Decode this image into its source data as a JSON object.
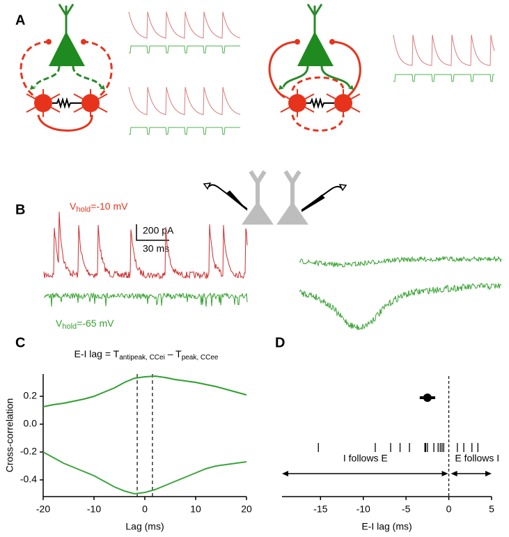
{
  "panels": {
    "a": "A",
    "b": "B",
    "c": "C",
    "d": "D"
  },
  "panel_b": {
    "v_hold_red": {
      "prefix": "V",
      "sub": "hold",
      "suffix": "=-10 mV"
    },
    "v_hold_green": {
      "prefix": "V",
      "sub": "hold",
      "suffix": "=-65 mV"
    },
    "scale_current": "200 pA",
    "scale_time": "30 ms"
  },
  "chart_data": [
    {
      "type": "line",
      "equation": {
        "lhs": "E-I lag = T",
        "sub1": "antipeak, CCei",
        "mid": " – T",
        "sub2": "peak, CCee"
      },
      "x_label": "Lag (ms)",
      "y_label": "Cross-correlation",
      "x": [
        -20,
        -18,
        -16,
        -14,
        -12,
        -10,
        -8,
        -6,
        -4,
        -2,
        0,
        2,
        4,
        6,
        8,
        10,
        12,
        14,
        16,
        18,
        20
      ],
      "series": [
        {
          "color": "#2ca02c",
          "values": [
            0.125,
            0.14,
            0.15,
            0.165,
            0.18,
            0.2,
            0.23,
            0.26,
            0.3,
            0.33,
            0.34,
            0.345,
            0.335,
            0.32,
            0.31,
            0.3,
            0.285,
            0.27,
            0.25,
            0.23,
            0.21
          ]
        },
        {
          "color": "#3aa53a",
          "values": [
            -0.2,
            -0.24,
            -0.28,
            -0.31,
            -0.34,
            -0.37,
            -0.41,
            -0.45,
            -0.48,
            -0.5,
            -0.49,
            -0.47,
            -0.44,
            -0.41,
            -0.38,
            -0.35,
            -0.32,
            -0.3,
            -0.29,
            -0.28,
            -0.27
          ]
        }
      ],
      "vlines": [
        -1.5,
        1.5
      ],
      "xlim": [
        -20,
        20
      ],
      "xticks": [
        -20,
        -10,
        0,
        10,
        20
      ],
      "ylim": [
        -0.52,
        0.36
      ],
      "yticks": [
        0.2,
        {
          "value": 0,
          "label": "0.0"
        },
        -0.2,
        -0.4
      ]
    },
    {
      "type": "strip",
      "x_label": "E-I lag (ms)",
      "x": [
        -15.25,
        -8.6,
        -6.8,
        -5.7,
        -4.6,
        -2.8,
        -2.7,
        -2.5,
        -1.75,
        -1.25,
        -1.0,
        -0.8,
        -0.6,
        1.0,
        1.75,
        2.7,
        3.4
      ],
      "mean": -2.5,
      "error": 0.9,
      "vline": 0,
      "annotations": {
        "left": "I follows E",
        "right": "E follows I"
      },
      "color": "#000000",
      "xlim": [
        -19.5,
        5
      ],
      "xticks": [
        -15,
        -10,
        -5,
        0,
        5
      ]
    }
  ]
}
